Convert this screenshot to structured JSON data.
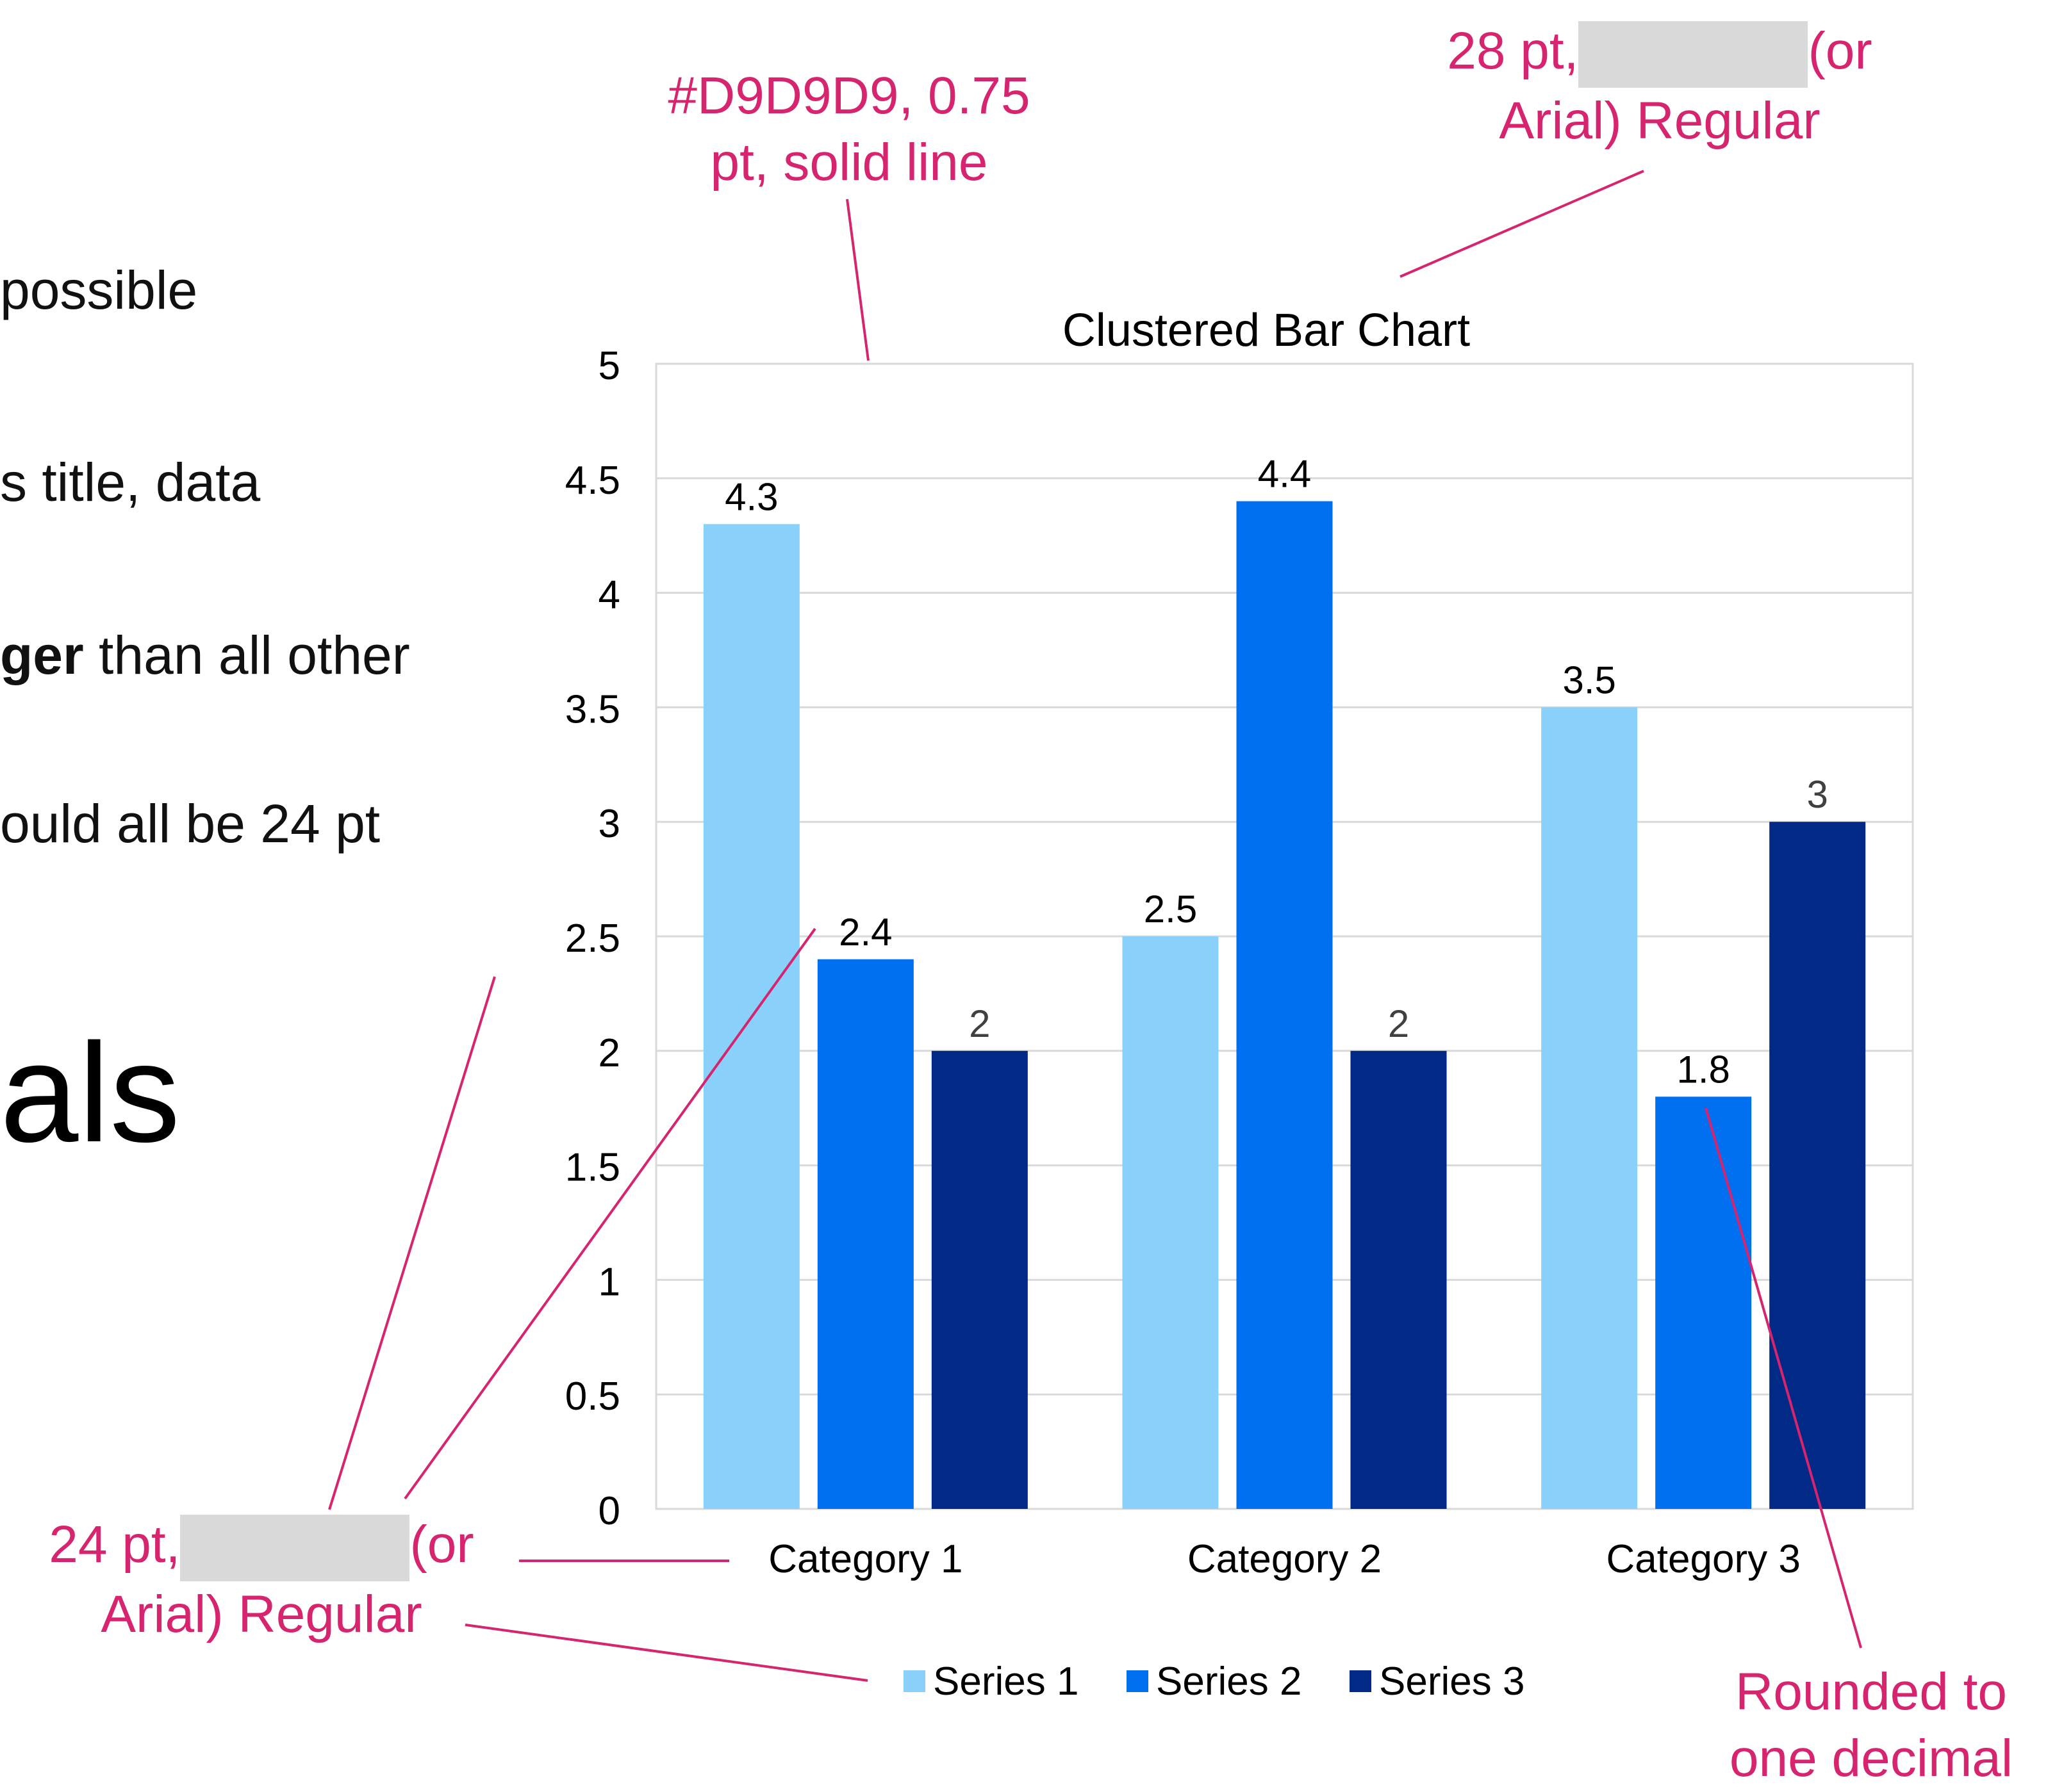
{
  "colors": {
    "annotation": "#D6246E",
    "gridline": "#D9D9D9",
    "series_1": "#89D1FB",
    "series_2": "#0070F0",
    "series_3": "#002A85"
  },
  "slide_text": {
    "line_1": "possible",
    "line_2": "s title, data",
    "line_3_bold": "ger",
    "line_3_rest": " than all other",
    "line_4": "ould all be 24 pt",
    "big_word": "als"
  },
  "annotations": {
    "gridline_note_1": "#D9D9D9, 0.75",
    "gridline_note_2": "pt, solid line",
    "title_note_1a": "28 pt,",
    "title_note_1b": "(or",
    "title_note_2": "Arial) Regular",
    "label_note_1a": "24 pt,",
    "label_note_1b": "(or",
    "label_note_2": "Arial) Regular",
    "rounding_note_1": "Rounded to",
    "rounding_note_2": "one decimal"
  },
  "chart_data": {
    "type": "bar",
    "title": "Clustered Bar Chart",
    "categories": [
      "Category 1",
      "Category 2",
      "Category 3"
    ],
    "series": [
      {
        "name": "Series 1",
        "values": [
          4.3,
          2.5,
          3.5
        ]
      },
      {
        "name": "Series 2",
        "values": [
          2.4,
          4.4,
          1.8
        ]
      },
      {
        "name": "Series 3",
        "values": [
          2,
          2,
          3
        ]
      }
    ],
    "ylim": [
      0,
      5
    ],
    "yticks": [
      "0",
      "0.5",
      "1",
      "1.5",
      "2",
      "2.5",
      "3",
      "3.5",
      "4",
      "4.5",
      "5"
    ],
    "grid": true,
    "legend": "bottom",
    "data_labels": true
  }
}
